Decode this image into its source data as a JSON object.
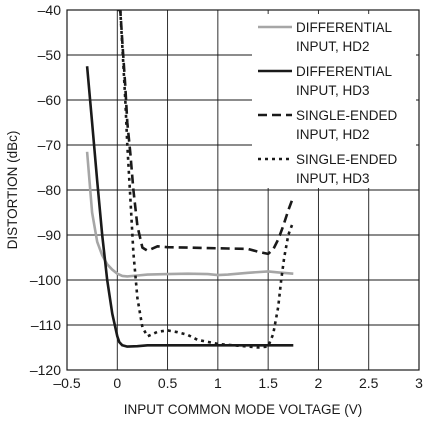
{
  "chart_data": {
    "type": "line",
    "xlabel": "INPUT COMMON MODE VOLTAGE (V)",
    "ylabel": "DISTORTION (dBc)",
    "xlim": [
      -0.5,
      3
    ],
    "ylim": [
      -120,
      -40
    ],
    "xticks": [
      -0.5,
      0,
      0.5,
      1,
      1.5,
      2,
      2.5,
      3
    ],
    "xtick_labels": [
      "–0.5",
      "0",
      "0.5",
      "1",
      "1.5",
      "2",
      "2.5",
      "3"
    ],
    "yticks": [
      -120,
      -110,
      -100,
      -90,
      -80,
      -70,
      -60,
      -50,
      -40
    ],
    "ytick_labels": [
      "–120",
      "–110",
      "–100",
      "–90",
      "–80",
      "–70",
      "–60",
      "–50",
      "–40"
    ],
    "grid": true,
    "legend_position": "top-right",
    "series": [
      {
        "name": "DIFFERENTIAL INPUT, HD2",
        "legend_lines": [
          "DIFFERENTIAL",
          "INPUT, HD2"
        ],
        "color": "#a6a6a6",
        "style": "solid",
        "x": [
          -0.3,
          -0.25,
          -0.2,
          -0.15,
          -0.1,
          -0.05,
          0.0,
          0.05,
          0.1,
          0.2,
          0.3,
          0.5,
          0.7,
          0.9,
          1.0,
          1.1,
          1.3,
          1.5,
          1.6,
          1.75
        ],
        "y": [
          -71.5,
          -85,
          -91.5,
          -94.5,
          -96.5,
          -97.7,
          -98.6,
          -99.1,
          -99.2,
          -99.0,
          -98.8,
          -98.7,
          -98.6,
          -98.7,
          -98.9,
          -98.8,
          -98.4,
          -98.1,
          -98.3,
          -98.6
        ]
      },
      {
        "name": "DIFFERENTIAL INPUT, HD3",
        "legend_lines": [
          "DIFFERENTIAL",
          "INPUT, HD3"
        ],
        "color": "#1a1a1a",
        "style": "solid",
        "x": [
          -0.3,
          -0.25,
          -0.2,
          -0.15,
          -0.1,
          -0.05,
          0.0,
          0.02,
          0.05,
          0.1,
          0.2,
          0.3,
          0.5,
          0.8,
          1.0,
          1.2,
          1.5,
          1.75
        ],
        "y": [
          -52.5,
          -65,
          -78,
          -90,
          -100,
          -107.5,
          -112.5,
          -113.8,
          -114.5,
          -114.8,
          -114.7,
          -114.5,
          -114.5,
          -114.5,
          -114.5,
          -114.5,
          -114.5,
          -114.5
        ]
      },
      {
        "name": "SINGLE-ENDED INPUT, HD2",
        "legend_lines": [
          "SINGLE-ENDED",
          "INPUT, HD2"
        ],
        "color": "#1a1a1a",
        "style": "dashed",
        "x": [
          0.0,
          0.03,
          0.05,
          0.08,
          0.1,
          0.13,
          0.16,
          0.2,
          0.25,
          0.3,
          0.4,
          0.5,
          0.7,
          0.9,
          1.1,
          1.3,
          1.4,
          1.5,
          1.55,
          1.6,
          1.65,
          1.7,
          1.75
        ],
        "y": [
          -40,
          -40,
          -47,
          -57,
          -65,
          -72,
          -80,
          -88,
          -92.8,
          -93.5,
          -92.5,
          -92.7,
          -92.8,
          -92.9,
          -93.0,
          -93.1,
          -93.7,
          -94.2,
          -93.2,
          -91.0,
          -88.0,
          -84.5,
          -81.5
        ]
      },
      {
        "name": "SINGLE-ENDED INPUT, HD3",
        "legend_lines": [
          "SINGLE-ENDED",
          "INPUT, HD3"
        ],
        "color": "#1a1a1a",
        "style": "dotted",
        "x": [
          0.03,
          0.05,
          0.08,
          0.1,
          0.13,
          0.16,
          0.2,
          0.25,
          0.3,
          0.4,
          0.5,
          0.6,
          0.7,
          0.8,
          1.0,
          1.2,
          1.4,
          1.5,
          1.55,
          1.6,
          1.63,
          1.66,
          1.7,
          1.75
        ],
        "y": [
          -40,
          -48,
          -60,
          -70,
          -82,
          -94,
          -104,
          -110.5,
          -112.5,
          -111.5,
          -111.2,
          -111.6,
          -112.2,
          -113.3,
          -114.2,
          -114.6,
          -115.0,
          -114.8,
          -112.0,
          -106.0,
          -100.0,
          -95.0,
          -90.0,
          -87.0
        ]
      }
    ]
  }
}
